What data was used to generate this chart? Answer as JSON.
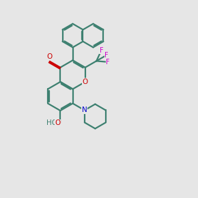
{
  "bg_color": "#e6e6e6",
  "bond_color": "#3d8070",
  "oxygen_color": "#cc0000",
  "nitrogen_color": "#0000cc",
  "fluorine_color": "#cc00cc",
  "lw": 1.6
}
